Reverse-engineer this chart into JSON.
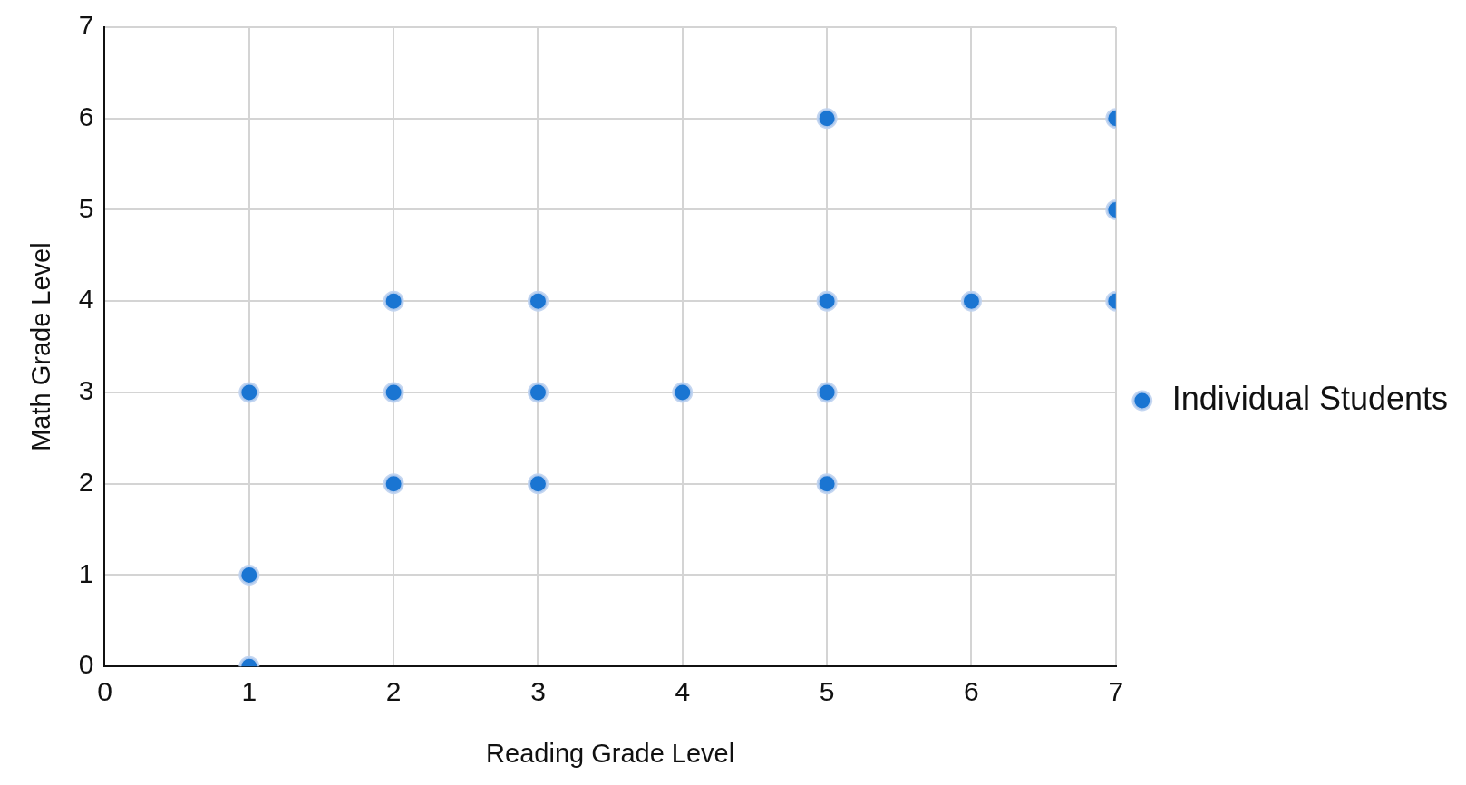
{
  "chart_data": {
    "type": "scatter",
    "xlabel": "Reading Grade Level",
    "ylabel": "Math Grade Level",
    "series": [
      {
        "name": "Individual Students",
        "color": "#1a75d2",
        "x": [
          1,
          1,
          1,
          2,
          2,
          2,
          3,
          3,
          3,
          4,
          5,
          5,
          5,
          5,
          6,
          7,
          7,
          7
        ],
        "values": [
          0,
          1,
          3,
          2,
          3,
          4,
          2,
          3,
          4,
          3,
          2,
          3,
          4,
          6,
          4,
          4,
          5,
          6
        ]
      }
    ],
    "xlim": [
      0,
      7
    ],
    "xticks": [
      0,
      1,
      2,
      3,
      4,
      5,
      6,
      7
    ],
    "ylim": [
      0,
      7
    ],
    "yticks": [
      0,
      1,
      2,
      3,
      4,
      5,
      6,
      7
    ],
    "grid": true,
    "legend": "right",
    "marker": "circle"
  }
}
